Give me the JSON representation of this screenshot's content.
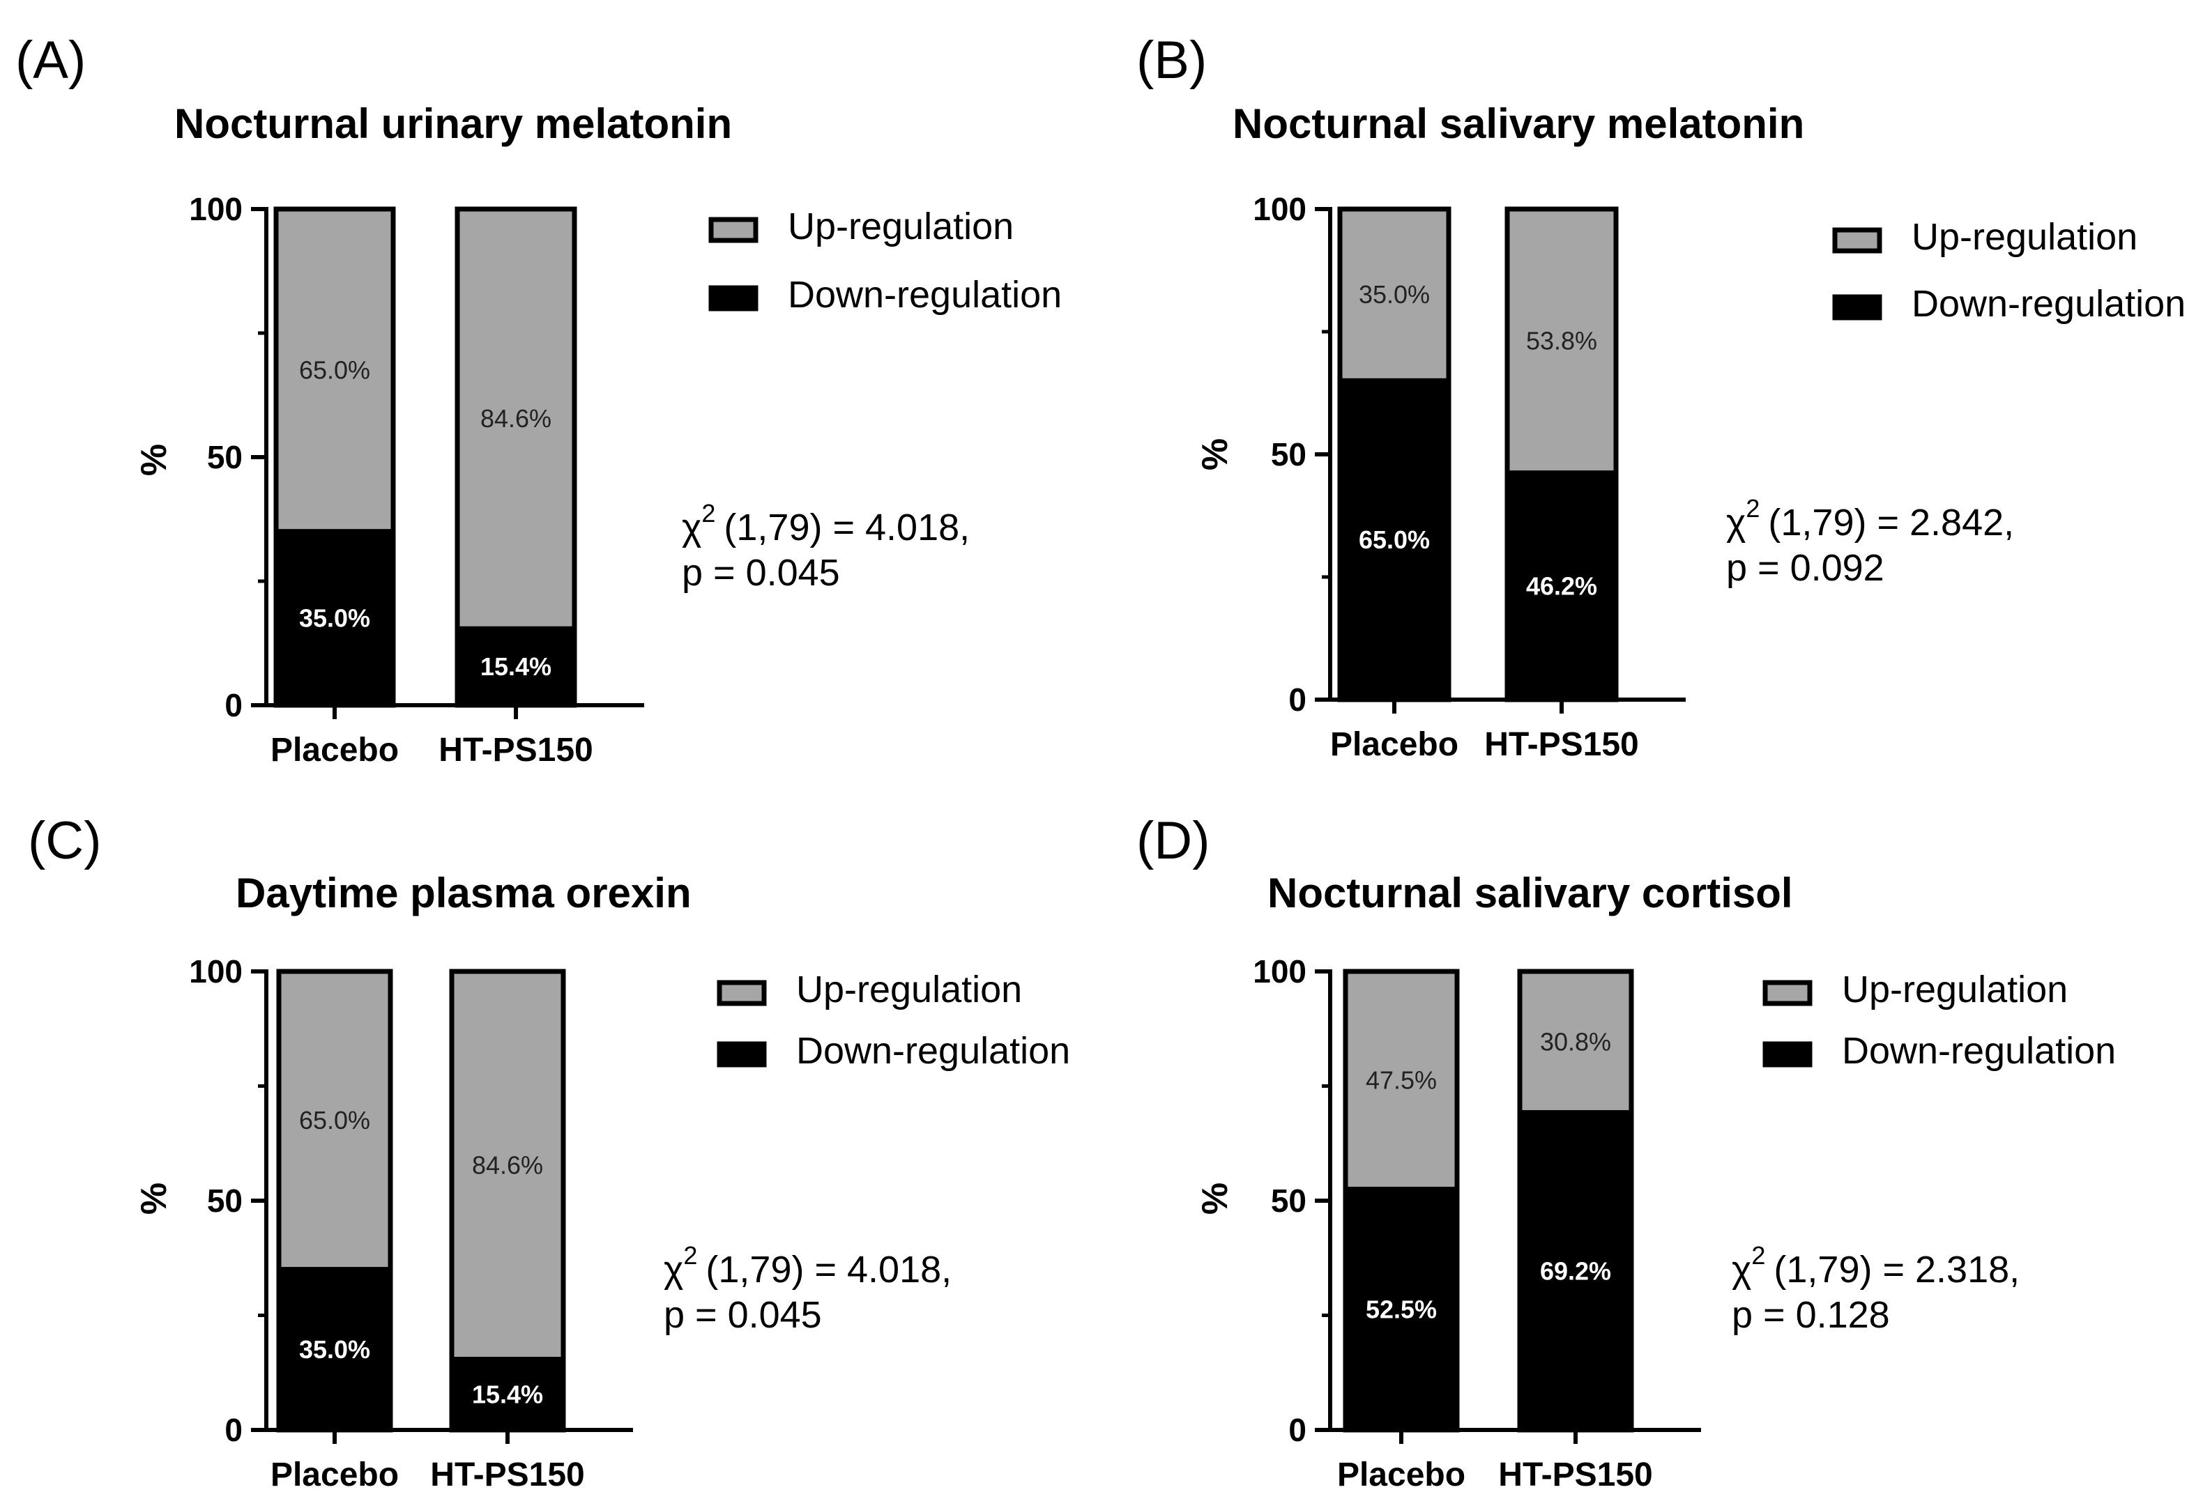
{
  "colors": {
    "up": "#a6a6a6",
    "down": "#000000",
    "axis": "#000000"
  },
  "chart_data": [
    {
      "panel": "(A)",
      "type": "bar",
      "stacked": true,
      "title": "Nocturnal urinary melatonin",
      "ylabel": "%",
      "ylim": [
        0,
        100
      ],
      "yticks": [
        "0",
        "50",
        "100"
      ],
      "categories": [
        "Placebo",
        "HT-PS150"
      ],
      "series": [
        {
          "name": "Down-regulation",
          "values": [
            35.0,
            15.4
          ],
          "labels": [
            "35.0%",
            "15.4%"
          ]
        },
        {
          "name": "Up-regulation",
          "values": [
            65.0,
            84.6
          ],
          "labels": [
            "65.0%",
            "84.6%"
          ]
        }
      ],
      "legend": [
        "Up-regulation",
        "Down-regulation"
      ],
      "stat_line1": "(1,79) = 4.018,",
      "stat_line2": "p = 0.045"
    },
    {
      "panel": "(B)",
      "type": "bar",
      "stacked": true,
      "title": "Nocturnal salivary melatonin",
      "ylabel": "%",
      "ylim": [
        0,
        100
      ],
      "yticks": [
        "0",
        "50",
        "100"
      ],
      "categories": [
        "Placebo",
        "HT-PS150"
      ],
      "series": [
        {
          "name": "Down-regulation",
          "values": [
            65.0,
            46.2
          ],
          "labels": [
            "65.0%",
            "46.2%"
          ]
        },
        {
          "name": "Up-regulation",
          "values": [
            35.0,
            53.8
          ],
          "labels": [
            "35.0%",
            "53.8%"
          ]
        }
      ],
      "legend": [
        "Up-regulation",
        "Down-regulation"
      ],
      "stat_line1": "(1,79) = 2.842,",
      "stat_line2": "p = 0.092"
    },
    {
      "panel": "(C)",
      "type": "bar",
      "stacked": true,
      "title": "Daytime plasma orexin",
      "ylabel": "%",
      "ylim": [
        0,
        100
      ],
      "yticks": [
        "0",
        "50",
        "100"
      ],
      "categories": [
        "Placebo",
        "HT-PS150"
      ],
      "series": [
        {
          "name": "Down-regulation",
          "values": [
            35.0,
            15.4
          ],
          "labels": [
            "35.0%",
            "15.4%"
          ]
        },
        {
          "name": "Up-regulation",
          "values": [
            65.0,
            84.6
          ],
          "labels": [
            "65.0%",
            "84.6%"
          ]
        }
      ],
      "legend": [
        "Up-regulation",
        "Down-regulation"
      ],
      "stat_line1": "(1,79) = 4.018,",
      "stat_line2": "p = 0.045"
    },
    {
      "panel": "(D)",
      "type": "bar",
      "stacked": true,
      "title": "Nocturnal salivary cortisol",
      "ylabel": "%",
      "ylim": [
        0,
        100
      ],
      "yticks": [
        "0",
        "50",
        "100"
      ],
      "categories": [
        "Placebo",
        "HT-PS150"
      ],
      "series": [
        {
          "name": "Down-regulation",
          "values": [
            52.5,
            69.2
          ],
          "labels": [
            "52.5%",
            "69.2%"
          ]
        },
        {
          "name": "Up-regulation",
          "values": [
            47.5,
            30.8
          ],
          "labels": [
            "47.5%",
            "30.8%"
          ]
        }
      ],
      "legend": [
        "Up-regulation",
        "Down-regulation"
      ],
      "stat_line1": "(1,79) = 2.318,",
      "stat_line2": "p = 0.128"
    }
  ],
  "stat_symbol": "χ",
  "stat_superscript": "2"
}
